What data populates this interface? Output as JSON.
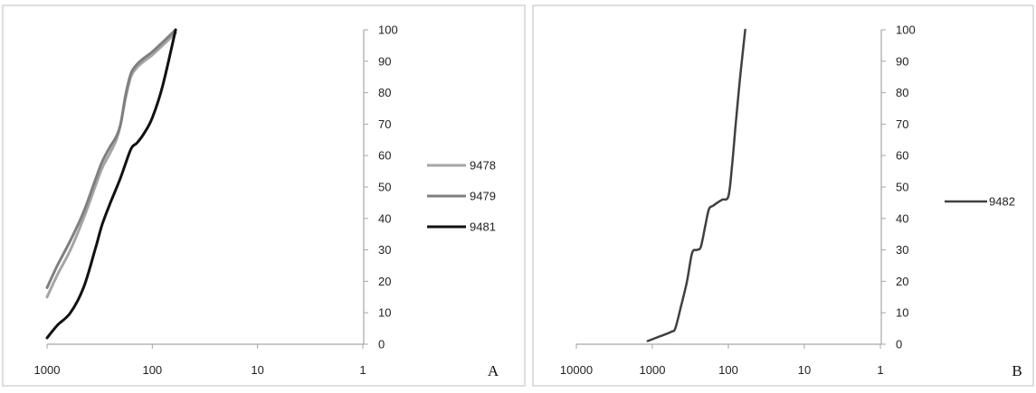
{
  "colors": {
    "border": "#d4d4d4",
    "axis": "#a6a6a6",
    "series_light": "#a5a5a5",
    "series_mid": "#7f7f7f",
    "series_dark": "#111111",
    "series_b": "#404040"
  },
  "chart_data": [
    {
      "type": "line",
      "panel_label": "A",
      "title": "",
      "xlabel": "",
      "ylabel": "",
      "x_scale": "log",
      "x_reversed": true,
      "xlim": [
        1000,
        1
      ],
      "x_ticks": [
        1000,
        100,
        10,
        1
      ],
      "x_tick_labels": [
        "1000",
        "100",
        "10",
        "1"
      ],
      "ylim": [
        0,
        100
      ],
      "y_ticks": [
        0,
        10,
        20,
        30,
        40,
        50,
        60,
        70,
        80,
        90,
        100
      ],
      "y_tick_labels": [
        "0",
        "10",
        "20",
        "30",
        "40",
        "50",
        "60",
        "70",
        "80",
        "90",
        "100"
      ],
      "y_axis_position": "right",
      "grid": false,
      "legend_position": "right",
      "series": [
        {
          "name": "9478",
          "color": "#a5a5a5",
          "x": [
            1000,
            800,
            600,
            450,
            350,
            300,
            250,
            220,
            200,
            180,
            160,
            140,
            120,
            100,
            80,
            60
          ],
          "y": [
            15,
            22,
            30,
            40,
            50,
            56,
            61,
            65,
            70,
            78,
            85,
            88,
            90,
            92,
            95,
            99
          ]
        },
        {
          "name": "9479",
          "color": "#7f7f7f",
          "x": [
            1000,
            800,
            600,
            450,
            350,
            300,
            250,
            220,
            200,
            180,
            160,
            140,
            120,
            100,
            80,
            60
          ],
          "y": [
            18,
            25,
            33,
            42,
            52,
            58,
            63,
            66,
            70,
            79,
            86,
            89,
            91,
            93,
            96,
            100
          ]
        },
        {
          "name": "9481",
          "color": "#111111",
          "x": [
            1000,
            800,
            600,
            450,
            350,
            300,
            250,
            200,
            160,
            140,
            120,
            100,
            80,
            60
          ],
          "y": [
            2,
            6,
            10,
            18,
            30,
            38,
            45,
            53,
            62,
            64,
            67,
            72,
            82,
            100
          ]
        }
      ]
    },
    {
      "type": "line",
      "panel_label": "B",
      "title": "",
      "xlabel": "",
      "ylabel": "",
      "x_scale": "log",
      "x_reversed": true,
      "xlim": [
        10000,
        1
      ],
      "x_ticks": [
        10000,
        1000,
        100,
        10,
        1
      ],
      "x_tick_labels": [
        "10000",
        "1000",
        "100",
        "10",
        "1"
      ],
      "ylim": [
        0,
        100
      ],
      "y_ticks": [
        0,
        10,
        20,
        30,
        40,
        50,
        60,
        70,
        80,
        90,
        100
      ],
      "y_tick_labels": [
        "0",
        "10",
        "20",
        "30",
        "40",
        "50",
        "60",
        "70",
        "80",
        "90",
        "100"
      ],
      "y_axis_position": "right",
      "grid": false,
      "legend_position": "right",
      "series": [
        {
          "name": "9482",
          "color": "#404040",
          "x": [
            1150,
            900,
            700,
            560,
            500,
            420,
            350,
            300,
            260,
            230,
            200,
            180,
            160,
            140,
            120,
            100,
            90,
            80,
            70,
            60
          ],
          "y": [
            1,
            2,
            3,
            4,
            5,
            12,
            20,
            29,
            30,
            31,
            38,
            43,
            44,
            45,
            46,
            47,
            56,
            70,
            85,
            100
          ]
        }
      ]
    }
  ]
}
